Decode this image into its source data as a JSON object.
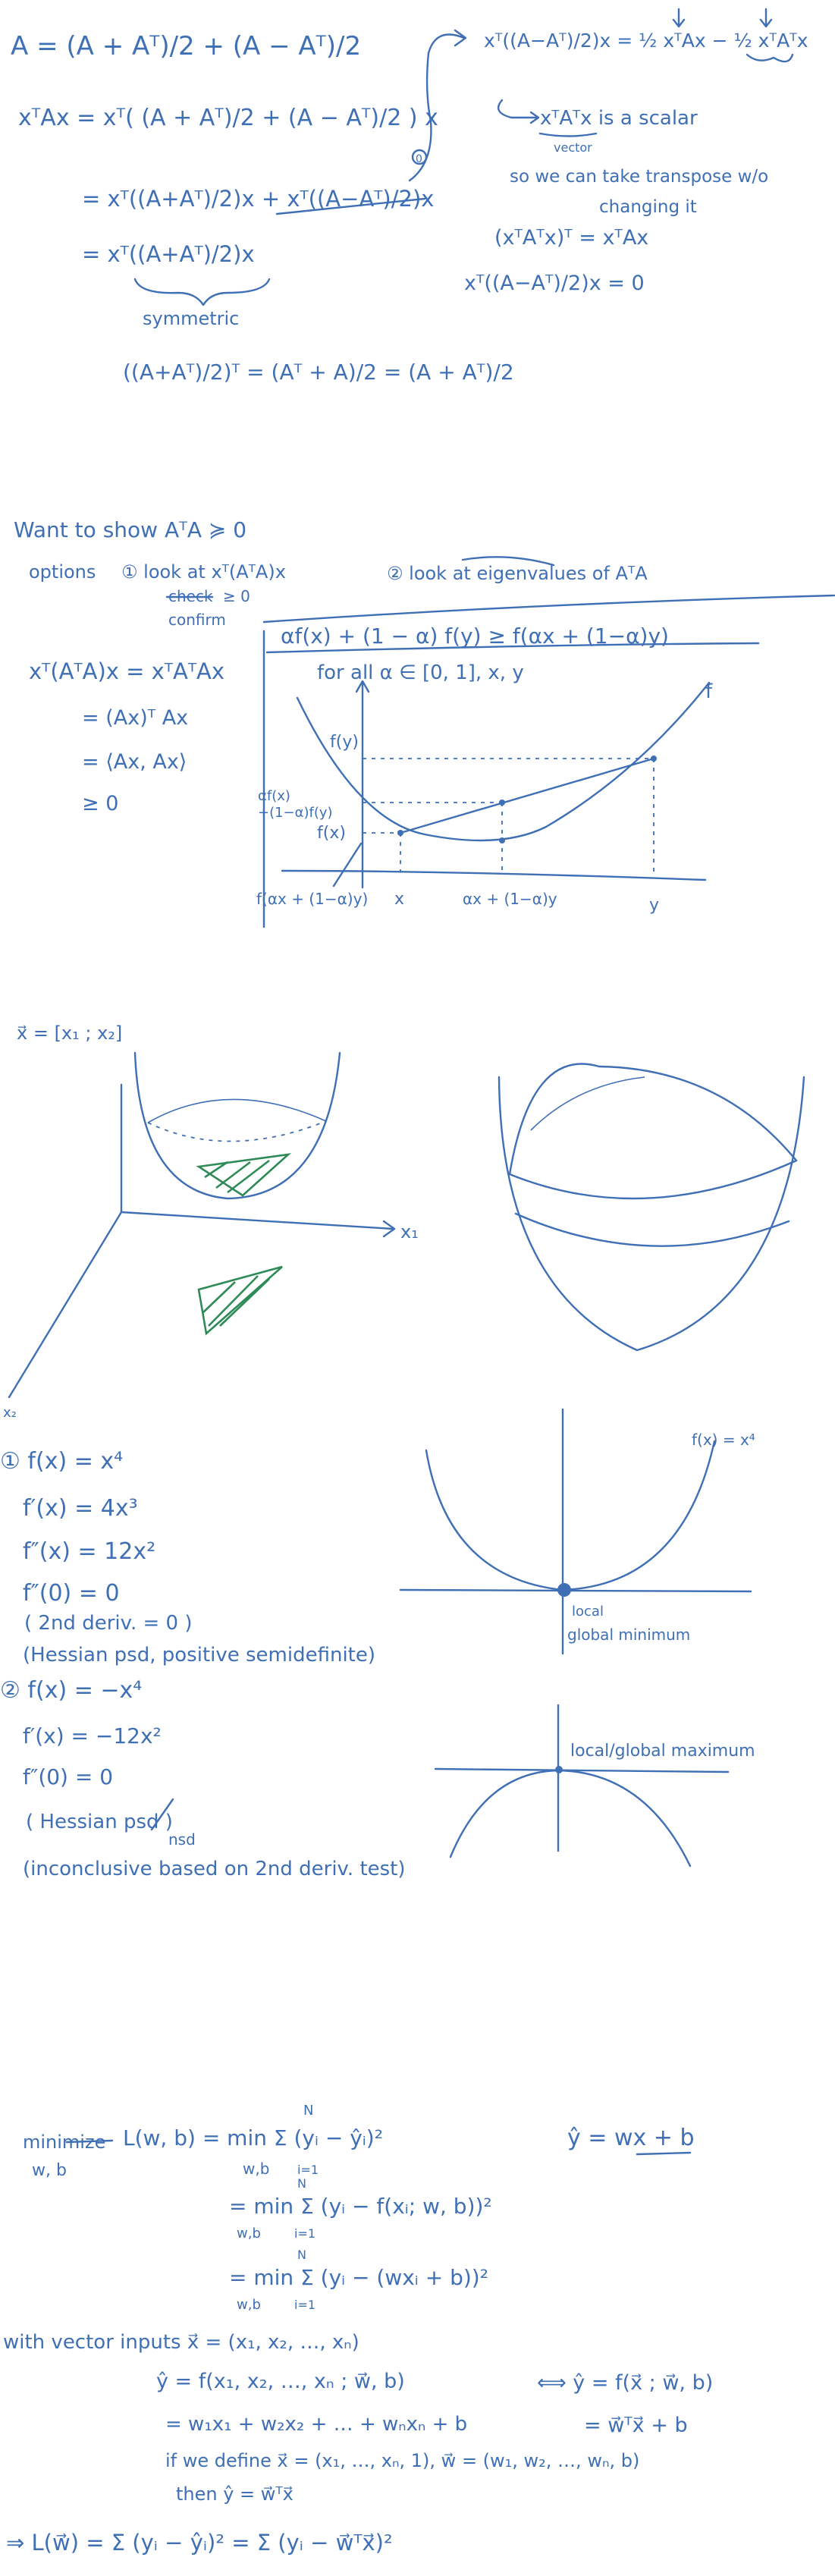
{
  "page": {
    "title": "Handwritten notes: quadratic forms, convexity and regression"
  },
  "colors": {
    "ink": "#3f6fb5",
    "accent": "#2e8b57",
    "background": "#ffffff"
  },
  "section1": {
    "line1": "A  =  (A + Aᵀ)/2  +  (A − Aᵀ)/2",
    "line2": "xᵀAx  =  xᵀ( (A + Aᵀ)/2  +  (A − Aᵀ)/2 ) x",
    "line3": "=  xᵀ((A+Aᵀ)/2)x  +  xᵀ((A−Aᵀ)/2)x",
    "zero_mark": "0",
    "line4": "=  xᵀ((A+Aᵀ)/2)x",
    "symmetric": "symmetric",
    "line5": "((A+Aᵀ)/2)ᵀ  =  (Aᵀ + A)/2  =  (A + Aᵀ)/2",
    "right1": "xᵀ((A−Aᵀ)/2)x  =  ½ xᵀAx  −  ½ xᵀAᵀx",
    "right2": "xᵀAᵀx   is a scalar",
    "vector_label": "vector",
    "right3": "so we can take transpose w/o",
    "right4": "changing it",
    "right5": "(xᵀAᵀx)ᵀ  =  xᵀAx",
    "right6": "xᵀ((A−Aᵀ)/2)x  =  0"
  },
  "section2": {
    "heading": "Want to show   AᵀA ≽ 0",
    "options": "options",
    "option1": "① look at xᵀ(AᵀA)x",
    "check_struck": "check",
    "confirm": "confirm",
    "geq0": "≥ 0",
    "option2": "② look at eigenvalues of AᵀA",
    "deriv1": "xᵀ(AᵀA)x = xᵀAᵀAx",
    "deriv2": "= (Ax)ᵀ Ax",
    "deriv3": "= ⟨Ax, Ax⟩",
    "deriv4": "≥ 0",
    "convex_def": "αf(x) + (1 − α) f(y)  ≥  f(αx + (1−α)y)",
    "for_all": "for all  α ∈ [0, 1],  x, y",
    "f_label": "f",
    "fy": "f(y)",
    "combo1": "αf(x)",
    "combo2": "+(1−α)f(y)",
    "fx": "f(x)",
    "fmix": "f(αx + (1−α)y)",
    "x_tick": "x",
    "mix_tick": "αx + (1−α)y",
    "y_tick": "y"
  },
  "section3": {
    "xvec": "x⃗ = [x₁ ; x₂]",
    "axis_x1": "x₁",
    "axis_x2": "x₂"
  },
  "section4": {
    "ex1_1": "① f(x) = x⁴",
    "ex1_2": "f′(x) = 4x³",
    "ex1_3": "f″(x) = 12x²",
    "ex1_4": "f″(0) = 0",
    "ex1_5": "( 2nd deriv.  =  0 )",
    "ex1_6": "(Hessian psd, positive semidefinite)",
    "graph1_label": "f(x) = x⁴",
    "local": "local",
    "global_min": "global minimum",
    "ex2_1": "② f(x) = −x⁴",
    "ex2_2": "f′(x) = −12x²",
    "ex2_3": "f″(0) = 0",
    "ex2_4": "( Hessian psd )",
    "nsd": "nsd",
    "ex2_5": "(inconclusive based on 2nd deriv. test)",
    "graph2_label": "local/global maximum"
  },
  "section5": {
    "minimize": "minimize",
    "wb": "w, b",
    "loss1": "L(w, b)  =  min  Σ (yᵢ − ŷᵢ)²",
    "yhat": "ŷ = wx + b",
    "loss2": "=  min  Σ (yᵢ − f(xᵢ; w, b))²",
    "loss3": "=  min  Σ (yᵢ − (wxᵢ + b))²",
    "min_sub": "w,b",
    "sum_top": "N",
    "sum_bottom": "i=1",
    "vec_inputs": "with vector inputs  x⃗ = (x₁, x₂, …, xₙ)",
    "vec_y": "ŷ = f(x₁, x₂, …, xₙ ; w⃗, b)",
    "equiv": "⟺  ŷ = f(x⃗ ; w⃗, b)",
    "expand": "= w₁x₁ + w₂x₂ + … + wₙxₙ + b",
    "expand_vec": "= w⃗ᵀx⃗ + b",
    "define": "if we  define  x⃗ = (x₁, …, xₙ, 1),  w⃗ = (w₁, w₂, …, wₙ, b)",
    "then": "then    ŷ = w⃗ᵀx⃗",
    "final": "⇒  L(w⃗) = Σ (yᵢ − ŷᵢ)²  =  Σ (yᵢ − w⃗ᵀx⃗)²"
  }
}
